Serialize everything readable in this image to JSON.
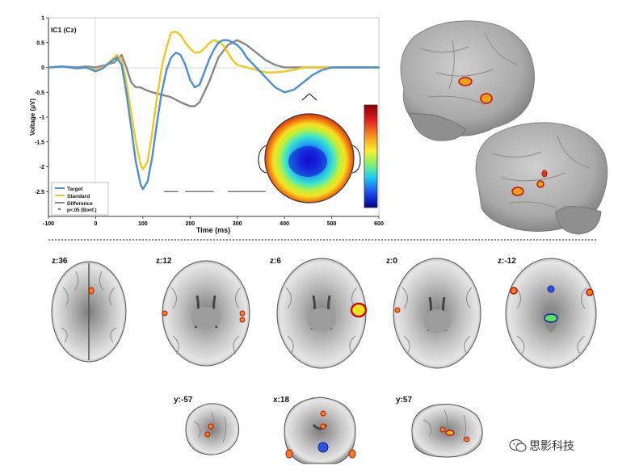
{
  "chart_data": {
    "type": "line",
    "title": "IC1 (Cz)",
    "xlabel": "Time (ms)",
    "ylabel": "Voltage (μV)",
    "xlim": [
      -100,
      600
    ],
    "ylim": [
      -3,
      1
    ],
    "xticks": [
      -100,
      0,
      100,
      200,
      300,
      400,
      500,
      600
    ],
    "yticks": [
      1,
      0.5,
      0,
      -0.5,
      -1,
      -1.5,
      -2,
      -2.5
    ],
    "legend_position": "bottom-left",
    "series": [
      {
        "name": "Target",
        "color": "#4a8fd8",
        "x": [
          -100,
          -70,
          -40,
          -20,
          0,
          15,
          30,
          45,
          55,
          65,
          75,
          85,
          95,
          100,
          110,
          120,
          130,
          140,
          150,
          160,
          170,
          180,
          190,
          200,
          210,
          220,
          230,
          240,
          250,
          260,
          270,
          280,
          290,
          300,
          310,
          320,
          340,
          360,
          380,
          400,
          420,
          440,
          460,
          480,
          500,
          520,
          540,
          560,
          580,
          600
        ],
        "y": [
          0,
          0.02,
          -0.02,
          0,
          -0.08,
          -0.02,
          0.1,
          0.2,
          0.05,
          -0.5,
          -1.2,
          -1.9,
          -2.35,
          -2.45,
          -2.3,
          -1.8,
          -1.1,
          -0.5,
          -0.05,
          0.2,
          0.3,
          0.25,
          0.05,
          -0.25,
          -0.4,
          -0.35,
          -0.1,
          0.15,
          0.35,
          0.5,
          0.55,
          0.55,
          0.5,
          0.45,
          0.35,
          0.2,
          0,
          -0.2,
          -0.4,
          -0.5,
          -0.45,
          -0.3,
          -0.15,
          -0.05,
          0,
          0,
          0,
          0,
          0,
          0
        ]
      },
      {
        "name": "Standard",
        "color": "#f2c81c",
        "x": [
          -100,
          -70,
          -40,
          -20,
          0,
          15,
          30,
          45,
          55,
          65,
          75,
          85,
          95,
          100,
          110,
          120,
          130,
          140,
          150,
          160,
          170,
          180,
          190,
          200,
          210,
          220,
          230,
          240,
          250,
          260,
          270,
          280,
          290,
          300,
          320,
          340,
          360,
          380,
          400,
          420,
          440,
          460,
          480,
          500,
          520,
          540,
          560,
          580,
          600
        ],
        "y": [
          0,
          0.02,
          -0.02,
          0,
          -0.05,
          0,
          0.12,
          0.25,
          0.15,
          -0.3,
          -0.9,
          -1.5,
          -1.95,
          -2.05,
          -1.9,
          -1.3,
          -0.6,
          0,
          0.4,
          0.7,
          0.72,
          0.65,
          0.5,
          0.38,
          0.3,
          0.3,
          0.38,
          0.48,
          0.55,
          0.52,
          0.45,
          0.3,
          0.15,
          0.05,
          0,
          -0.05,
          -0.1,
          -0.1,
          -0.08,
          -0.05,
          0,
          0,
          0,
          0,
          0,
          0,
          0,
          0,
          0
        ]
      },
      {
        "name": "Difference",
        "color": "#888888",
        "x": [
          -100,
          -70,
          -40,
          -20,
          0,
          20,
          40,
          55,
          65,
          75,
          85,
          95,
          105,
          120,
          140,
          160,
          180,
          200,
          210,
          220,
          230,
          240,
          250,
          260,
          280,
          300,
          320,
          340,
          360,
          380,
          400,
          420,
          440,
          460,
          480,
          500,
          520,
          540,
          560,
          580,
          600
        ],
        "y": [
          0,
          0.02,
          0,
          0.02,
          0,
          0.05,
          0.1,
          0.25,
          0,
          -0.3,
          -0.4,
          -0.4,
          -0.45,
          -0.5,
          -0.55,
          -0.6,
          -0.7,
          -0.78,
          -0.78,
          -0.7,
          -0.5,
          -0.3,
          -0.05,
          0.2,
          0.45,
          0.55,
          0.45,
          0.3,
          0.15,
          0.05,
          0,
          0,
          0,
          0,
          0,
          0,
          0,
          0,
          0,
          0,
          0
        ]
      }
    ],
    "significance": {
      "label": "p<.05 (Bonf.)",
      "intervals": [
        [
          145,
          175
        ],
        [
          190,
          250
        ],
        [
          280,
          360
        ]
      ],
      "y": -2.5
    }
  },
  "legend": {
    "target": "Target",
    "standard": "Standard",
    "difference": "Difference",
    "signif": "p<.05 (Bonf.)"
  },
  "slices": [
    {
      "label": "z:36"
    },
    {
      "label": "z:12"
    },
    {
      "label": "z:6"
    },
    {
      "label": "z:0"
    },
    {
      "label": "z:-12"
    },
    {
      "label": "y:-57"
    },
    {
      "label": "x:18"
    },
    {
      "label": "y:57"
    }
  ],
  "watermark": "思影科技"
}
